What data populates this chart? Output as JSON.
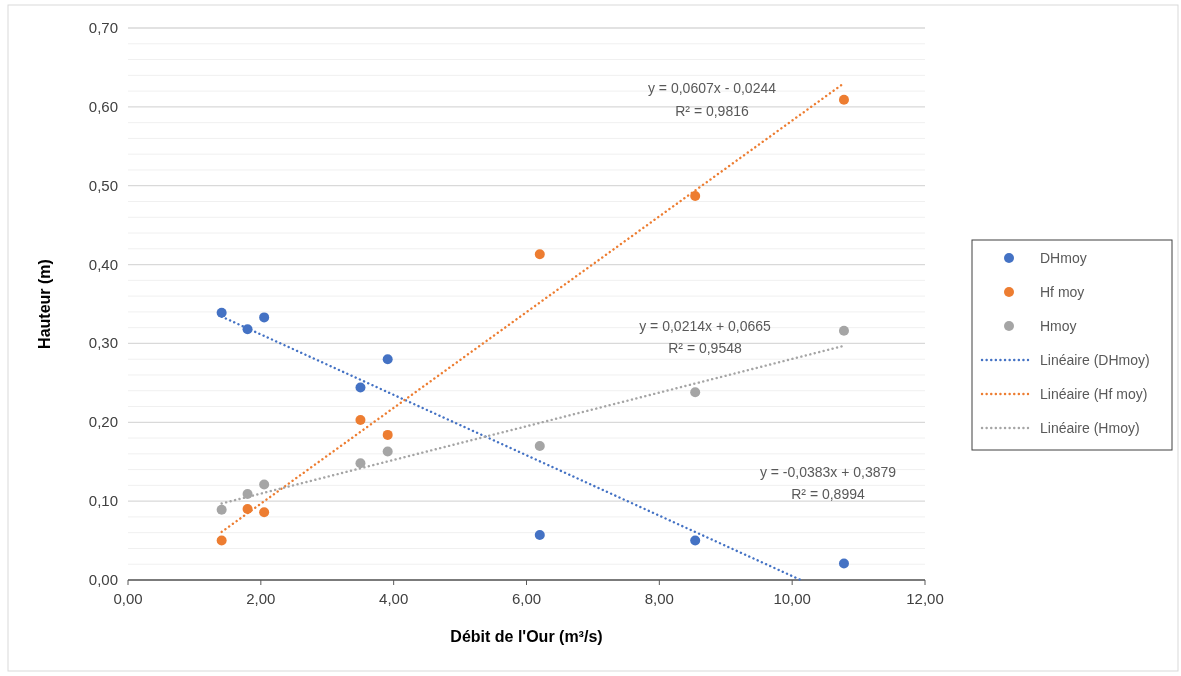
{
  "chart_data": {
    "type": "scatter",
    "xlabel": "Débit de l'Our (m³/s)",
    "ylabel": "Hauteur (m)",
    "xlim": [
      0,
      12
    ],
    "ylim": [
      0,
      0.7
    ],
    "xticks": [
      {
        "value": 0,
        "label": "0,00"
      },
      {
        "value": 2,
        "label": "2,00"
      },
      {
        "value": 4,
        "label": "4,00"
      },
      {
        "value": 6,
        "label": "6,00"
      },
      {
        "value": 8,
        "label": "8,00"
      },
      {
        "value": 10,
        "label": "10,00"
      },
      {
        "value": 12,
        "label": "12,00"
      }
    ],
    "yticks": [
      {
        "value": 0,
        "label": "0,00"
      },
      {
        "value": 0.02,
        "label": null
      },
      {
        "value": 0.04,
        "label": null
      },
      {
        "value": 0.06,
        "label": null
      },
      {
        "value": 0.08,
        "label": null
      },
      {
        "value": 0.1,
        "label": "0,10"
      },
      {
        "value": 0.12,
        "label": null
      },
      {
        "value": 0.14,
        "label": null
      },
      {
        "value": 0.16,
        "label": null
      },
      {
        "value": 0.18,
        "label": null
      },
      {
        "value": 0.2,
        "label": "0,20"
      },
      {
        "value": 0.22,
        "label": null
      },
      {
        "value": 0.24,
        "label": null
      },
      {
        "value": 0.26,
        "label": null
      },
      {
        "value": 0.28,
        "label": null
      },
      {
        "value": 0.3,
        "label": "0,30"
      },
      {
        "value": 0.32,
        "label": null
      },
      {
        "value": 0.34,
        "label": null
      },
      {
        "value": 0.36,
        "label": null
      },
      {
        "value": 0.38,
        "label": null
      },
      {
        "value": 0.4,
        "label": "0,40"
      },
      {
        "value": 0.42,
        "label": null
      },
      {
        "value": 0.44,
        "label": null
      },
      {
        "value": 0.46,
        "label": null
      },
      {
        "value": 0.48,
        "label": null
      },
      {
        "value": 0.5,
        "label": "0,50"
      },
      {
        "value": 0.52,
        "label": null
      },
      {
        "value": 0.54,
        "label": null
      },
      {
        "value": 0.56,
        "label": null
      },
      {
        "value": 0.58,
        "label": null
      },
      {
        "value": 0.6,
        "label": "0,60"
      },
      {
        "value": 0.62,
        "label": null
      },
      {
        "value": 0.64,
        "label": null
      },
      {
        "value": 0.66,
        "label": null
      },
      {
        "value": 0.68,
        "label": null
      },
      {
        "value": 0.7,
        "label": "0,70"
      }
    ],
    "grid": "y",
    "legend": "right",
    "marker": "circle",
    "x": [
      1.41,
      1.8,
      2.05,
      3.5,
      3.91,
      6.2,
      8.54,
      10.78
    ],
    "series": [
      {
        "name": "DHmoy",
        "color": "#4472c4",
        "values": [
          0.339,
          0.318,
          0.333,
          0.244,
          0.28,
          0.057,
          0.05,
          0.021
        ]
      },
      {
        "name": "Hf moy",
        "color": "#ed7d31",
        "values": [
          0.05,
          0.09,
          0.086,
          0.203,
          0.184,
          0.413,
          0.487,
          0.609
        ]
      },
      {
        "name": "Hmoy",
        "color": "#a5a5a5",
        "values": [
          0.089,
          0.109,
          0.121,
          0.148,
          0.163,
          0.17,
          0.238,
          0.316
        ]
      },
      {
        "name": "Linéaire (DHmoy)",
        "type": "line",
        "line_style": "dotted",
        "marker": "none",
        "color": "#4472c4",
        "x": [
          1.41,
          10.13
        ],
        "values": [
          0.334,
          0
        ]
      },
      {
        "name": "Linéaire (Hf moy)",
        "type": "line",
        "line_style": "dotted",
        "marker": "none",
        "color": "#ed7d31",
        "x": [
          1.41,
          10.78
        ],
        "values": [
          0.061,
          0.63
        ]
      },
      {
        "name": "Linéaire (Hmoy)",
        "type": "line",
        "line_style": "dotted",
        "marker": "none",
        "color": "#a5a5a5",
        "x": [
          1.41,
          10.78
        ],
        "values": [
          0.097,
          0.297
        ]
      }
    ],
    "annotations": [
      "y = 0,0607x - 0,0244",
      "R² = 0,9816",
      "y = 0,0214x + 0,0665",
      "R² = 0,9548",
      "y = -0,0383x + 0,3879",
      "R² = 0,8994"
    ]
  }
}
